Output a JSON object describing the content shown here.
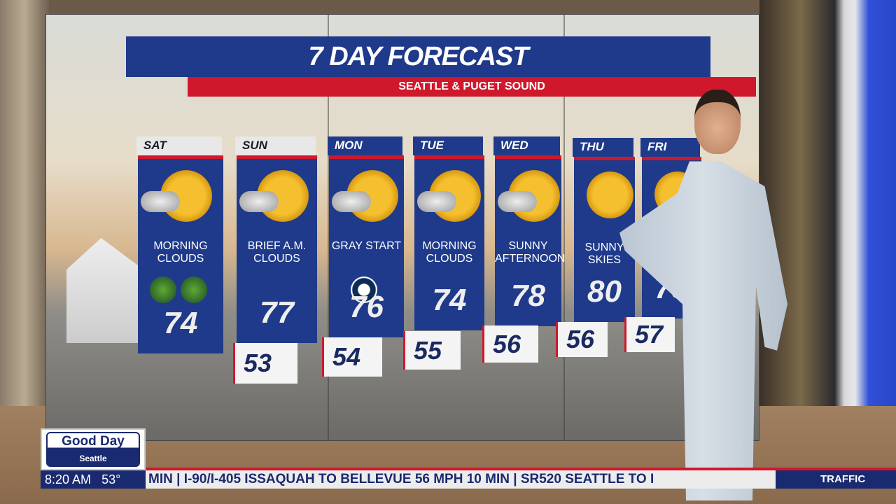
{
  "forecast": {
    "title": "7 DAY FORECAST",
    "subtitle": "SEATTLE & PUGET SOUND",
    "days": [
      {
        "day": "SAT",
        "condition": "MORNING CLOUDS",
        "high": "74",
        "low": "",
        "icon": "sun-behind-cloud",
        "logos": [
          "sounders-logo",
          "reign-logo"
        ]
      },
      {
        "day": "SUN",
        "condition": "BRIEF A.M. CLOUDS",
        "high": "77",
        "low": "53",
        "icon": "sun-behind-cloud"
      },
      {
        "day": "MON",
        "condition": "GRAY START",
        "high": "76",
        "low": "54",
        "icon": "sun-behind-cloud",
        "logos": [
          "mariners-logo"
        ]
      },
      {
        "day": "TUE",
        "condition": "MORNING CLOUDS",
        "high": "74",
        "low": "55",
        "icon": "sun-behind-cloud"
      },
      {
        "day": "WED",
        "condition": "SUNNY AFTERNOON",
        "high": "78",
        "low": "56",
        "icon": "sun-behind-cloud"
      },
      {
        "day": "THU",
        "condition": "SUNNY SKIES",
        "high": "80",
        "low": "56",
        "icon": "hazy-sun"
      },
      {
        "day": "FRI",
        "condition": "",
        "high": "78",
        "low": "57",
        "icon": "hazy-sun"
      }
    ]
  },
  "branding": {
    "show_line1": "Good Day",
    "show_line2": "Seattle"
  },
  "status": {
    "time": "8:20 AM",
    "temperature": "53°"
  },
  "ticker": {
    "text": "MIN  |  I-90/I-405 ISSAQUAH TO BELLEVUE 56 MPH 10 MIN  |  SR520 SEATTLE TO I",
    "label": "TRAFFIC"
  },
  "colors": {
    "navy": "#1f3a8a",
    "red": "#d0182c",
    "ticker_navy": "#1a2a70"
  }
}
